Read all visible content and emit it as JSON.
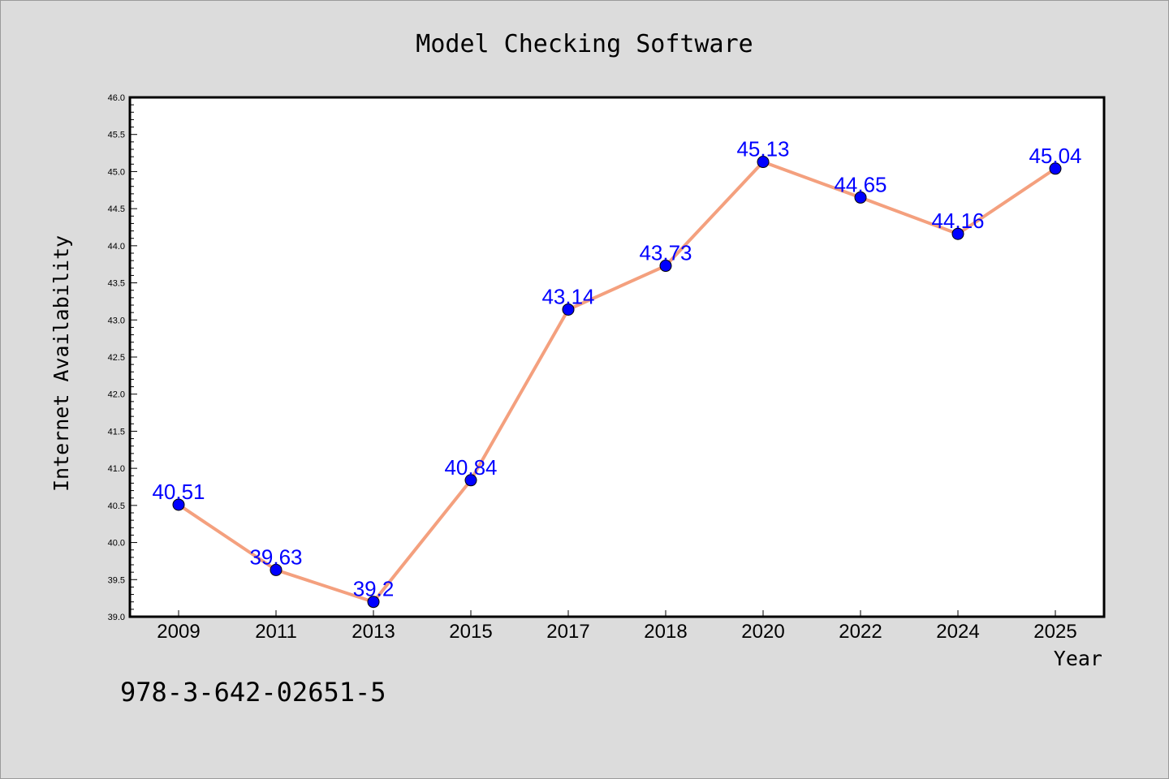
{
  "chart_data": {
    "type": "line",
    "title": "Model Checking Software",
    "xlabel": "Year",
    "ylabel": "Internet Availability",
    "categories": [
      "2009",
      "2011",
      "2013",
      "2015",
      "2017",
      "2018",
      "2020",
      "2022",
      "2024",
      "2025"
    ],
    "series": [
      {
        "values": [
          40.51,
          39.63,
          39.2,
          40.84,
          43.14,
          43.73,
          45.13,
          44.65,
          44.16,
          45.04
        ],
        "data_labels": [
          "40.51",
          "39.63",
          "39.2",
          "40.84",
          "43.14",
          "43.73",
          "45.13",
          "44.65",
          "44.16",
          "45.04"
        ],
        "line_color": "#f4a07e",
        "marker_color": "#0000ff"
      }
    ],
    "ylim": [
      39.0,
      46.0
    ],
    "yticks": [
      "39.0",
      "39.5",
      "40.0",
      "40.5",
      "41.0",
      "41.5",
      "42.0",
      "42.5",
      "43.0",
      "43.5",
      "44.0",
      "44.5",
      "45.0",
      "45.5",
      "46.0"
    ],
    "grid": false,
    "legend": "none"
  },
  "footer": {
    "isbn": "978-3-642-02651-5"
  },
  "colors": {
    "background": "#dcdcdc",
    "plot_background": "#ffffff",
    "line": "#f4a07e",
    "marker": "#0000ff",
    "data_label": "#0000ff"
  }
}
